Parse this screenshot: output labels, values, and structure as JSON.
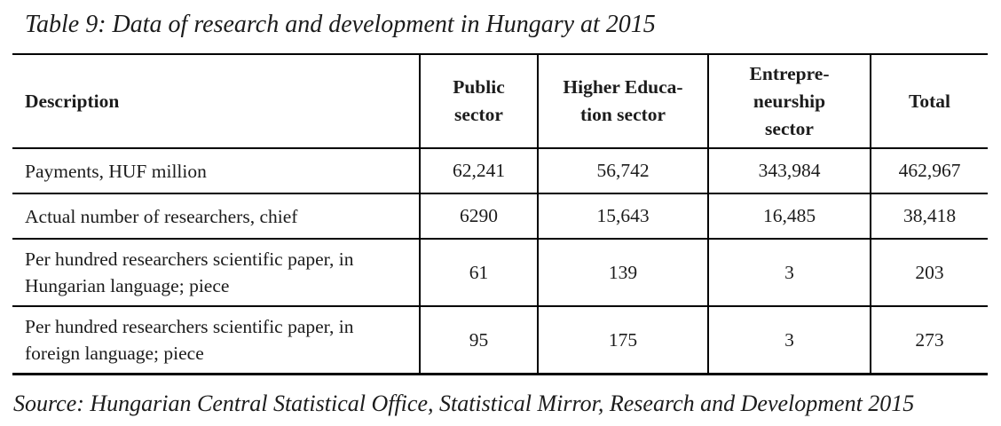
{
  "caption": "Table 9: Data of research and development in Hungary at 2015",
  "source": "Source: Hungarian Central Statistical Office, Statistical Mirror, Research and Development 2015",
  "table": {
    "columns": [
      {
        "label": "Description"
      },
      {
        "label": "Public\nsector"
      },
      {
        "label": "Higher Educa-\ntion sector"
      },
      {
        "label": "Entrepre-\nneurship\nsector"
      },
      {
        "label": "Total"
      }
    ],
    "rows": [
      {
        "description": "Payments, HUF million",
        "values": [
          "62,241",
          "56,742",
          "343,984",
          "462,967"
        ]
      },
      {
        "description": "Actual number of researchers, chief",
        "values": [
          "6290",
          "15,643",
          "16,485",
          "38,418"
        ]
      },
      {
        "description": "Per hundred researchers scientific paper, in Hungarian language; piece",
        "values": [
          "61",
          "139",
          "3",
          "203"
        ]
      },
      {
        "description": "Per hundred researchers scientific paper, in foreign language; piece",
        "values": [
          "95",
          "175",
          "3",
          "273"
        ]
      }
    ]
  },
  "colors": {
    "text": "#1c1c1c",
    "border": "#000000",
    "background": "#ffffff"
  }
}
